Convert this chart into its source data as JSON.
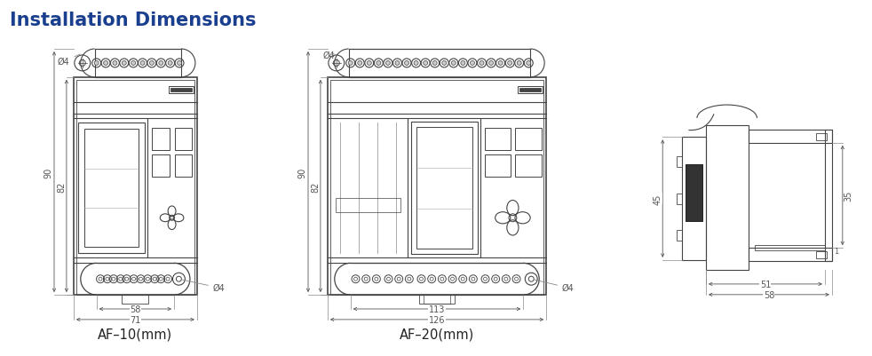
{
  "title": "Installation Dimensions",
  "title_color": "#1a3f8f",
  "title_fontsize": 15,
  "bg_color": "#ffffff",
  "line_color": "#444444",
  "line_width": 0.8,
  "dim_color": "#555555",
  "labels": {
    "af10": "AF–10(mm)",
    "af20": "AF–20(mm)",
    "dim_90_1": "90",
    "dim_82_1": "82",
    "dim_58": "58",
    "dim_71": "71",
    "dim_phi4_top1": "Ø4",
    "dim_phi4_bot1": "Ø4",
    "dim_90_2": "90",
    "dim_82_2": "82",
    "dim_113": "113",
    "dim_126": "126",
    "dim_phi4_top2": "Ø4",
    "dim_phi4_bot2": "Ø4",
    "dim_45": "45",
    "dim_35": "35",
    "dim_1": "1",
    "dim_51": "51",
    "dim_58_r": "58"
  }
}
